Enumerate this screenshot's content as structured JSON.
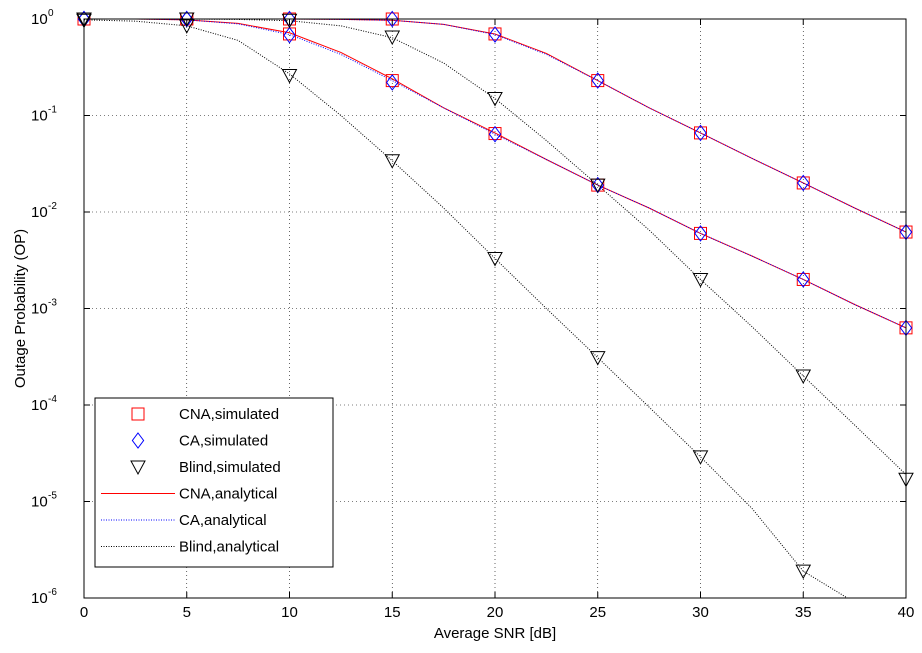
{
  "chart_data": {
    "type": "line",
    "title": "",
    "xlabel": "Average SNR [dB]",
    "ylabel": "Outage Probability (OP)",
    "xscale": "linear",
    "yscale": "log",
    "xlim": [
      0,
      40
    ],
    "ylim": [
      1e-06,
      1
    ],
    "grid": true,
    "legend_position": "bottom-left",
    "xticks": [
      0,
      5,
      10,
      15,
      20,
      25,
      30,
      35,
      40
    ],
    "x_tick_labels": [
      "0",
      "5",
      "10",
      "15",
      "20",
      "25",
      "30",
      "35",
      "40"
    ],
    "y_tick_labels": [
      {
        "base": "10",
        "exp": "0"
      },
      {
        "base": "10",
        "exp": "-1"
      },
      {
        "base": "10",
        "exp": "-2"
      },
      {
        "base": "10",
        "exp": "-3"
      },
      {
        "base": "10",
        "exp": "-4"
      },
      {
        "base": "10",
        "exp": "-5"
      },
      {
        "base": "10",
        "exp": "-6"
      }
    ],
    "colors": {
      "cna": "#ff0000",
      "ca": "#0000ff",
      "blind": "#000000"
    },
    "series": [
      {
        "name": "CNA,simulated",
        "kind": "markers",
        "marker": "square",
        "color": "#ff0000",
        "x": [
          0,
          5,
          10,
          15,
          20,
          25,
          30,
          35,
          40
        ],
        "y": [
          1.0,
          1.0,
          0.7,
          0.23,
          0.065,
          0.019,
          0.006,
          0.002,
          0.00063
        ]
      },
      {
        "name": "CNA,simulated",
        "kind": "markers",
        "marker": "square",
        "color": "#ff0000",
        "in_legend": false,
        "x": [
          0,
          5,
          10,
          15,
          20,
          25,
          30,
          35,
          40
        ],
        "y": [
          1.0,
          1.0,
          1.0,
          1.0,
          0.7,
          0.23,
          0.066,
          0.02,
          0.0062
        ]
      },
      {
        "name": "CA,simulated",
        "kind": "markers",
        "marker": "diamond",
        "color": "#0000ff",
        "x": [
          0,
          5,
          10,
          15,
          20,
          25,
          30,
          35,
          40
        ],
        "y": [
          1.0,
          1.0,
          0.68,
          0.22,
          0.064,
          0.019,
          0.006,
          0.002,
          0.00063
        ]
      },
      {
        "name": "CA,simulated",
        "kind": "markers",
        "marker": "diamond",
        "color": "#0000ff",
        "in_legend": false,
        "x": [
          0,
          5,
          10,
          15,
          20,
          25,
          30,
          35,
          40
        ],
        "y": [
          1.0,
          1.0,
          1.0,
          1.0,
          0.69,
          0.23,
          0.066,
          0.02,
          0.0062
        ]
      },
      {
        "name": "Blind,simulated",
        "kind": "markers",
        "marker": "triangle-down",
        "color": "#000000",
        "x": [
          0,
          5,
          10,
          15,
          20,
          25,
          30,
          35
        ],
        "y": [
          0.97,
          0.85,
          0.26,
          0.034,
          0.0033,
          0.00031,
          2.9e-05,
          1.9e-06
        ]
      },
      {
        "name": "Blind,simulated",
        "kind": "markers",
        "marker": "triangle-down",
        "color": "#000000",
        "in_legend": false,
        "x": [
          0,
          5,
          10,
          15,
          20,
          25,
          30,
          35,
          40
        ],
        "y": [
          1.0,
          1.0,
          0.97,
          0.65,
          0.15,
          0.019,
          0.002,
          0.0002,
          1.7e-05
        ]
      },
      {
        "name": "CNA,analytical",
        "kind": "line",
        "color": "#ff0000",
        "dash": "solid",
        "x": [
          0,
          2.5,
          5,
          7.5,
          10,
          12.5,
          15,
          17.5,
          20,
          22.5,
          25,
          27.5,
          30,
          32.5,
          35,
          37.5,
          40
        ],
        "y": [
          1.0,
          1.0,
          0.98,
          0.9,
          0.72,
          0.45,
          0.24,
          0.12,
          0.066,
          0.035,
          0.019,
          0.011,
          0.006,
          0.0035,
          0.002,
          0.0011,
          0.00063
        ]
      },
      {
        "name": "CNA,analytical",
        "kind": "line",
        "color": "#ff0000",
        "dash": "solid",
        "in_legend": false,
        "x": [
          0,
          2.5,
          5,
          7.5,
          10,
          12.5,
          15,
          17.5,
          20,
          22.5,
          25,
          27.5,
          30,
          32.5,
          35,
          37.5,
          40
        ],
        "y": [
          1.0,
          1.0,
          1.0,
          1.0,
          1.0,
          0.99,
          0.97,
          0.88,
          0.7,
          0.44,
          0.23,
          0.12,
          0.066,
          0.036,
          0.02,
          0.011,
          0.0062
        ]
      },
      {
        "name": "CA,analytical",
        "kind": "line",
        "color": "#0000ff",
        "dash": "dotted",
        "x": [
          0,
          2.5,
          5,
          7.5,
          10,
          12.5,
          15,
          17.5,
          20,
          22.5,
          25,
          27.5,
          30,
          32.5,
          35,
          37.5,
          40
        ],
        "y": [
          1.0,
          1.0,
          0.98,
          0.89,
          0.69,
          0.43,
          0.23,
          0.12,
          0.064,
          0.035,
          0.019,
          0.011,
          0.006,
          0.0035,
          0.002,
          0.0011,
          0.00063
        ]
      },
      {
        "name": "CA,analytical",
        "kind": "line",
        "color": "#0000ff",
        "dash": "dotted",
        "in_legend": false,
        "x": [
          0,
          2.5,
          5,
          7.5,
          10,
          12.5,
          15,
          17.5,
          20,
          22.5,
          25,
          27.5,
          30,
          32.5,
          35,
          37.5,
          40
        ],
        "y": [
          1.0,
          1.0,
          1.0,
          1.0,
          1.0,
          0.99,
          0.97,
          0.88,
          0.69,
          0.43,
          0.23,
          0.12,
          0.066,
          0.036,
          0.02,
          0.011,
          0.0062
        ]
      },
      {
        "name": "Blind,analytical",
        "kind": "line",
        "color": "#000000",
        "dash": "dotted",
        "x": [
          0,
          2.5,
          5,
          7.5,
          10,
          12.5,
          15,
          17.5,
          20,
          22.5,
          25,
          27.5,
          30,
          32.5,
          35,
          37.5
        ],
        "y": [
          0.98,
          0.95,
          0.85,
          0.6,
          0.27,
          0.1,
          0.034,
          0.011,
          0.0033,
          0.001,
          0.00031,
          9.5e-05,
          2.9e-05,
          8.5e-06,
          1.9e-06,
          9e-07
        ]
      },
      {
        "name": "Blind,analytical",
        "kind": "line",
        "color": "#000000",
        "dash": "dotted",
        "in_legend": false,
        "x": [
          0,
          2.5,
          5,
          7.5,
          10,
          12.5,
          15,
          17.5,
          20,
          22.5,
          25,
          27.5,
          30,
          32.5,
          35,
          37.5,
          40
        ],
        "y": [
          1.0,
          1.0,
          1.0,
          0.99,
          0.96,
          0.85,
          0.64,
          0.35,
          0.15,
          0.055,
          0.019,
          0.0065,
          0.002,
          0.00065,
          0.0002,
          6.2e-05,
          1.9e-05
        ]
      }
    ],
    "legend": [
      {
        "label": "CNA,simulated",
        "style": "marker",
        "marker": "square",
        "color": "#ff0000"
      },
      {
        "label": "CA,simulated",
        "style": "marker",
        "marker": "diamond",
        "color": "#0000ff"
      },
      {
        "label": "Blind,simulated",
        "style": "marker",
        "marker": "triangle-down",
        "color": "#000000"
      },
      {
        "label": "CNA,analytical",
        "style": "line",
        "dash": "solid",
        "color": "#ff0000"
      },
      {
        "label": "CA,analytical",
        "style": "line",
        "dash": "dotted",
        "color": "#0000ff"
      },
      {
        "label": "Blind,analytical",
        "style": "line",
        "dash": "dotted",
        "color": "#000000"
      }
    ]
  }
}
